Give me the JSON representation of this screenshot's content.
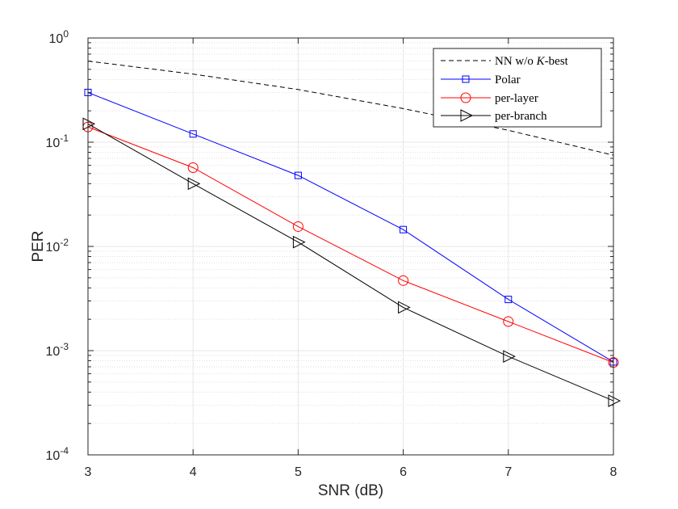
{
  "chart_data": {
    "type": "line",
    "yscale": "log",
    "title": "",
    "xlabel": "SNR (dB)",
    "ylabel": "PER",
    "xlim": [
      3,
      8
    ],
    "ylim": [
      0.0001,
      1
    ],
    "grid": true,
    "minor_grid": true,
    "legend_position": "top-right",
    "x_ticks": [
      3,
      4,
      5,
      6,
      7,
      8
    ],
    "x_tick_labels": [
      "3",
      "4",
      "5",
      "6",
      "7",
      "8"
    ],
    "y_ticks": [
      {
        "value": 0.0001,
        "base": "10",
        "exp": "-4"
      },
      {
        "value": 0.001,
        "base": "10",
        "exp": "-3"
      },
      {
        "value": 0.01,
        "base": "10",
        "exp": "-2"
      },
      {
        "value": 0.1,
        "base": "10",
        "exp": "-1"
      },
      {
        "value": 1,
        "base": "10",
        "exp": "0"
      }
    ],
    "legend_labels": {
      "nn_prefix": "NN w/o ",
      "nn_italic": "K",
      "nn_suffix": "-best",
      "polar": "Polar",
      "per_layer": "per-layer",
      "per_branch": "per-branch"
    },
    "series": [
      {
        "name": "NN w/o K-best",
        "color": "#000000",
        "style": "dashed",
        "marker": "none",
        "x": [
          3,
          4,
          5,
          6,
          7,
          8
        ],
        "values": [
          0.6,
          0.45,
          0.32,
          0.21,
          0.13,
          0.075
        ]
      },
      {
        "name": "Polar",
        "color": "#0000ff",
        "style": "solid",
        "marker": "square",
        "x": [
          3,
          4,
          5,
          6,
          7,
          8
        ],
        "values": [
          0.3,
          0.12,
          0.048,
          0.0145,
          0.0031,
          0.00078
        ]
      },
      {
        "name": "per-layer",
        "color": "#ff0000",
        "style": "solid",
        "marker": "circle",
        "x": [
          3,
          4,
          5,
          6,
          7,
          8
        ],
        "values": [
          0.14,
          0.057,
          0.0155,
          0.0047,
          0.0019,
          0.00077
        ]
      },
      {
        "name": "per-branch",
        "color": "#000000",
        "style": "solid",
        "marker": "triangle-right",
        "x": [
          3,
          4,
          5,
          6,
          7,
          8
        ],
        "values": [
          0.15,
          0.04,
          0.011,
          0.0026,
          0.00088,
          0.00033
        ]
      }
    ]
  }
}
